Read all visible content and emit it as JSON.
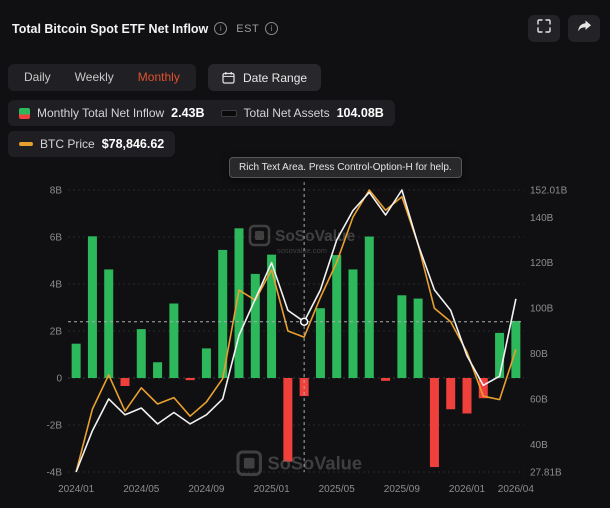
{
  "header": {
    "title": "Total Bitcoin Spot ETF Net Inflow",
    "est_label": "EST"
  },
  "toolbar": {
    "tabs": [
      {
        "label": "Daily",
        "active": false
      },
      {
        "label": "Weekly",
        "active": false
      },
      {
        "label": "Monthly",
        "active": true
      }
    ],
    "date_range_label": "Date Range"
  },
  "legend": {
    "inflow_label": "Monthly Total Net Inflow",
    "inflow_value": "2.43B",
    "assets_label": "Total Net Assets",
    "assets_value": "104.08B",
    "btc_label": "BTC Price",
    "btc_value": "$78,846.62"
  },
  "tooltip": {
    "text": "Rich Text Area. Press Control-Option-H for help."
  },
  "watermark": {
    "name": "SoSoValue",
    "domain": "sosovalue.com"
  },
  "chart_data": {
    "type": "bar+line",
    "x": [
      "2024/01",
      "2024/02",
      "2024/03",
      "2024/04",
      "2024/05",
      "2024/06",
      "2024/07",
      "2024/08",
      "2024/09",
      "2024/10",
      "2024/11",
      "2024/12",
      "2025/01",
      "2025/02",
      "2025/03",
      "2025/04",
      "2025/05",
      "2025/06",
      "2025/07",
      "2025/08",
      "2025/09",
      "2025/10",
      "2025/11",
      "2025/12",
      "2026/01",
      "2026/02",
      "2026/03",
      "2026/04"
    ],
    "x_tick_indices": [
      0,
      4,
      8,
      12,
      16,
      20,
      24,
      27
    ],
    "series": [
      {
        "name": "Monthly Total Net Inflow",
        "type": "bar",
        "axis": "left",
        "unit": "B",
        "values": [
          1.46,
          6.03,
          4.62,
          -0.34,
          2.08,
          0.67,
          3.17,
          -0.09,
          1.26,
          5.45,
          6.37,
          4.43,
          5.25,
          -3.56,
          -0.77,
          2.97,
          5.23,
          4.62,
          6.02,
          -0.12,
          3.52,
          3.38,
          -3.79,
          -1.33,
          -1.51,
          -0.86,
          1.92,
          2.43
        ]
      },
      {
        "name": "Total Net Assets",
        "type": "line",
        "axis": "right",
        "unit": "B",
        "values": [
          27.81,
          46,
          60,
          53,
          56,
          49,
          54,
          49,
          53,
          60,
          88,
          104,
          120,
          99,
          94,
          108,
          130,
          143,
          151,
          141,
          152.01,
          128,
          108,
          99,
          79,
          66,
          70,
          104.08
        ]
      },
      {
        "name": "BTC Price",
        "type": "line",
        "axis": "btc",
        "unit": "USD",
        "values": [
          42580,
          61200,
          71300,
          60600,
          67500,
          62700,
          64600,
          59100,
          63300,
          70200,
          96400,
          93400,
          102400,
          84300,
          82500,
          94200,
          104600,
          118000,
          126000,
          120000,
          124000,
          110000,
          91000,
          87000,
          78000,
          65000,
          64000,
          78846.62
        ]
      }
    ],
    "left_axis": {
      "min": -4,
      "max": 8,
      "ticks": [
        8,
        6,
        4,
        2,
        0,
        -2,
        -4
      ],
      "labels": [
        "8B",
        "6B",
        "4B",
        "2B",
        "0",
        "-2B",
        "-4B"
      ]
    },
    "right_axis": {
      "min": 27.81,
      "max": 152.01,
      "ticks": [
        152.01,
        140,
        120,
        100,
        80,
        60,
        40,
        27.81
      ],
      "labels": [
        "152.01B",
        "140B",
        "120B",
        "100B",
        "80B",
        "60B",
        "40B",
        "27.81B"
      ]
    },
    "btc_axis": {
      "min": 42580,
      "max": 126000
    },
    "crosshair": {
      "month_index": 14
    },
    "colors": {
      "accent": "#e0512f",
      "positive": "#2db85c",
      "negative": "#f0403c",
      "assets_line": "#f2f2f2",
      "btc_line": "#e8a02e",
      "grid": "#28282b",
      "zero_line": "#3c3c40",
      "axis_text": "#8d8d8d",
      "watermark": "#6e6e6e"
    }
  }
}
